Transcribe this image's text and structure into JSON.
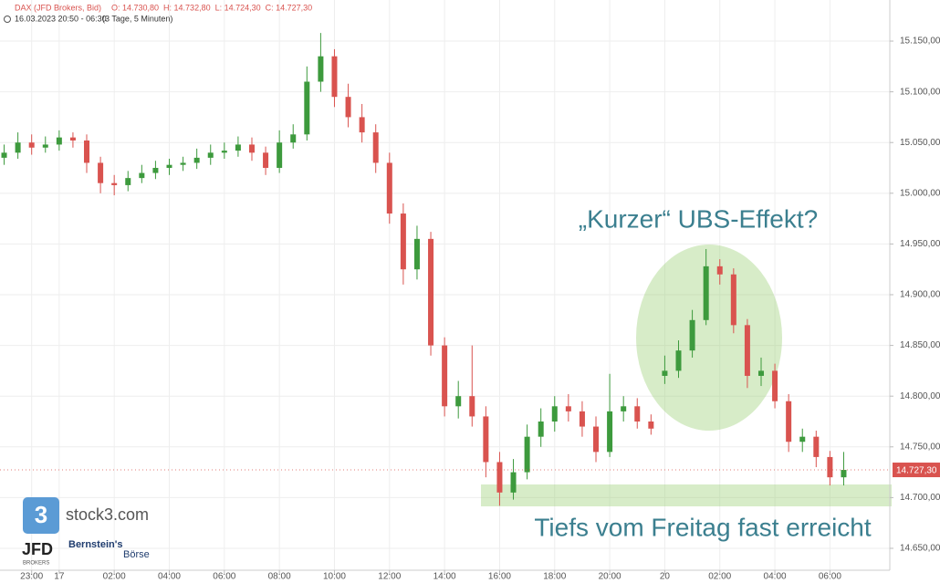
{
  "header": {
    "instrument": "DAX (JFD Brokers, Bid)",
    "ohlc": "O: 14.730,80  H: 14.732,80  L: 14.724,30  C: 14.727,30",
    "range": "16.03.2023 20:50 - 06:30",
    "interval": "(3 Tage, 5 Minuten)"
  },
  "logos": {
    "stock3": "stock3.com",
    "stock3_icon": "3",
    "jfd": "JFD",
    "jfd_sub": "BROKERS",
    "bernstein": "Bernstein's",
    "boerse": "Börse"
  },
  "chart_data": {
    "type": "candlestick",
    "up_color": "#3d9a3d",
    "down_color": "#d9534f",
    "grid": true,
    "xlim": [
      -4.6,
      124.7
    ],
    "ylim": [
      14628.4,
      15190.5
    ],
    "xticks": [
      {
        "value": 0,
        "label": "23:00"
      },
      {
        "value": 4,
        "label": "17"
      },
      {
        "value": 12,
        "label": "02:00"
      },
      {
        "value": 20,
        "label": "04:00"
      },
      {
        "value": 28,
        "label": "06:00"
      },
      {
        "value": 36,
        "label": "08:00"
      },
      {
        "value": 44,
        "label": "10:00"
      },
      {
        "value": 52,
        "label": "12:00"
      },
      {
        "value": 60,
        "label": "14:00"
      },
      {
        "value": 68,
        "label": "16:00"
      },
      {
        "value": 76,
        "label": "18:00"
      },
      {
        "value": 84,
        "label": "20:00"
      },
      {
        "value": 92,
        "label": "20"
      },
      {
        "value": 100,
        "label": "02:00"
      },
      {
        "value": 108,
        "label": "04:00"
      },
      {
        "value": 116,
        "label": "06:00"
      }
    ],
    "yticks": [
      {
        "value": 14650,
        "label": "14.650,00"
      },
      {
        "value": 14700,
        "label": "14.700,00"
      },
      {
        "value": 14750,
        "label": "14.750,00"
      },
      {
        "value": 14800,
        "label": "14.800,00"
      },
      {
        "value": 14850,
        "label": "14.850,00"
      },
      {
        "value": 14900,
        "label": "14.900,00"
      },
      {
        "value": 14950,
        "label": "14.950,00"
      },
      {
        "value": 15000,
        "label": "15.000,00"
      },
      {
        "value": 15050,
        "label": "15.050,00"
      },
      {
        "value": 15100,
        "label": "15.100,00"
      },
      {
        "value": 15150,
        "label": "15.150,00"
      }
    ],
    "x": [
      -4,
      -2,
      0,
      2,
      4,
      6,
      8,
      10,
      12,
      14,
      16,
      18,
      20,
      22,
      24,
      26,
      28,
      30,
      32,
      34,
      36,
      38,
      40,
      42,
      44,
      46,
      48,
      50,
      52,
      54,
      56,
      58,
      60,
      62,
      64,
      66,
      68,
      70,
      72,
      74,
      76,
      78,
      80,
      82,
      84,
      86,
      88,
      90,
      92,
      94,
      96,
      98,
      100,
      102,
      104,
      106,
      108,
      110,
      112,
      114,
      116,
      118
    ],
    "open": [
      15035,
      15040,
      15050,
      15045,
      15048,
      15055,
      15052,
      15030,
      15010,
      15008,
      15015,
      15020,
      15025,
      15028,
      15030,
      15035,
      15040,
      15042,
      15048,
      15040,
      15025,
      15050,
      15058,
      15110,
      15135,
      15095,
      15075,
      15060,
      15030,
      14980,
      14925,
      14955,
      14850,
      14790,
      14800,
      14780,
      14735,
      14705,
      14725,
      14760,
      14775,
      14790,
      14785,
      14770,
      14745,
      14785,
      14790,
      14775,
      14820,
      14825,
      14845,
      14875,
      14928,
      14920,
      14870,
      14820,
      14825,
      14795,
      14755,
      14760,
      14740,
      14720
    ],
    "high": [
      15048,
      15060,
      15058,
      15056,
      15062,
      15060,
      15058,
      15036,
      15018,
      15022,
      15028,
      15032,
      15034,
      15036,
      15044,
      15048,
      15050,
      15056,
      15055,
      15046,
      15062,
      15068,
      15125,
      15158,
      15142,
      15108,
      15088,
      15068,
      15040,
      14990,
      14968,
      14962,
      14858,
      14815,
      14850,
      14790,
      14745,
      14738,
      14772,
      14788,
      14800,
      14802,
      14795,
      14780,
      14822,
      14800,
      14798,
      14782,
      14840,
      14855,
      14885,
      14945,
      14935,
      14926,
      14876,
      14838,
      14832,
      14802,
      14768,
      14766,
      14746,
      14745
    ],
    "low": [
      15028,
      15034,
      15038,
      15040,
      15042,
      15045,
      15020,
      15000,
      14998,
      15002,
      15010,
      15014,
      15018,
      15022,
      15024,
      15028,
      15034,
      15036,
      15032,
      15018,
      15020,
      15044,
      15052,
      15100,
      15085,
      15065,
      15050,
      15020,
      14970,
      14910,
      14915,
      14840,
      14780,
      14778,
      14770,
      14720,
      14692,
      14698,
      14718,
      14750,
      14765,
      14775,
      14760,
      14735,
      14740,
      14775,
      14768,
      14762,
      14812,
      14818,
      14838,
      14870,
      14910,
      14862,
      14808,
      14810,
      14788,
      14745,
      14745,
      14730,
      14712,
      14712
    ],
    "close": [
      15040,
      15050,
      15045,
      15048,
      15055,
      15052,
      15030,
      15010,
      15008,
      15015,
      15020,
      15025,
      15028,
      15030,
      15035,
      15040,
      15042,
      15048,
      15040,
      15025,
      15050,
      15058,
      15110,
      15135,
      15095,
      15075,
      15060,
      15030,
      14980,
      14925,
      14955,
      14850,
      14790,
      14800,
      14780,
      14735,
      14705,
      14725,
      14760,
      14775,
      14790,
      14785,
      14770,
      14745,
      14785,
      14790,
      14775,
      14768,
      14825,
      14845,
      14875,
      14928,
      14920,
      14870,
      14820,
      14825,
      14795,
      14755,
      14760,
      14740,
      14720,
      14727.3
    ],
    "last_price": {
      "value": 14727.3,
      "label": "14.727,30"
    },
    "annotations": [
      "„Kurzer“ UBS-Effekt?",
      "Tiefs vom Freitag fast erreicht"
    ]
  }
}
